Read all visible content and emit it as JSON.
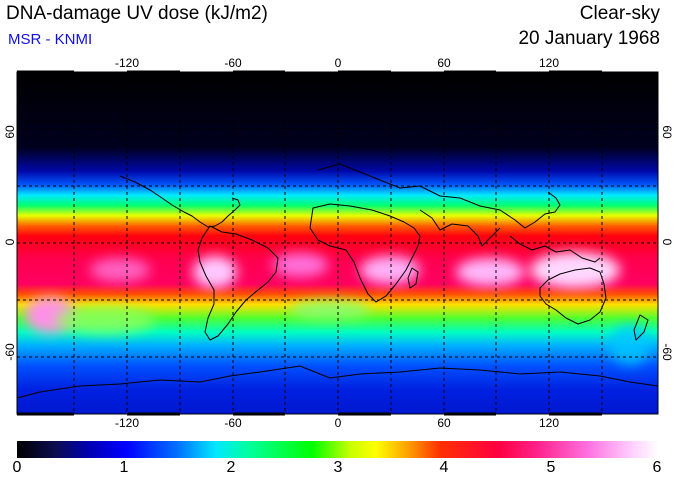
{
  "title": "DNA-damage UV dose (kJ/m2)",
  "credit": "MSR - KNMI",
  "sky_condition": "Clear-sky",
  "date": "20 January 1968",
  "map": {
    "projection": "equirectangular",
    "lon_range": [
      -180,
      180
    ],
    "lat_range": [
      -90,
      90
    ],
    "lon_ticks": [
      "-120",
      "-60",
      "0",
      "60",
      "120"
    ],
    "lat_ticks": [
      "60",
      "0",
      "-60"
    ],
    "gridlines": "dashed every 30 degrees"
  },
  "colorbar": {
    "min": 0,
    "max": 6,
    "labels": [
      "0",
      "1",
      "2",
      "3",
      "4",
      "5",
      "6"
    ],
    "colors": [
      "#000000",
      "#0000ff",
      "#00e8ff",
      "#00ff00",
      "#ffff00",
      "#ff3000",
      "#ff0040",
      "#ff70e0",
      "#ffffff"
    ]
  }
}
